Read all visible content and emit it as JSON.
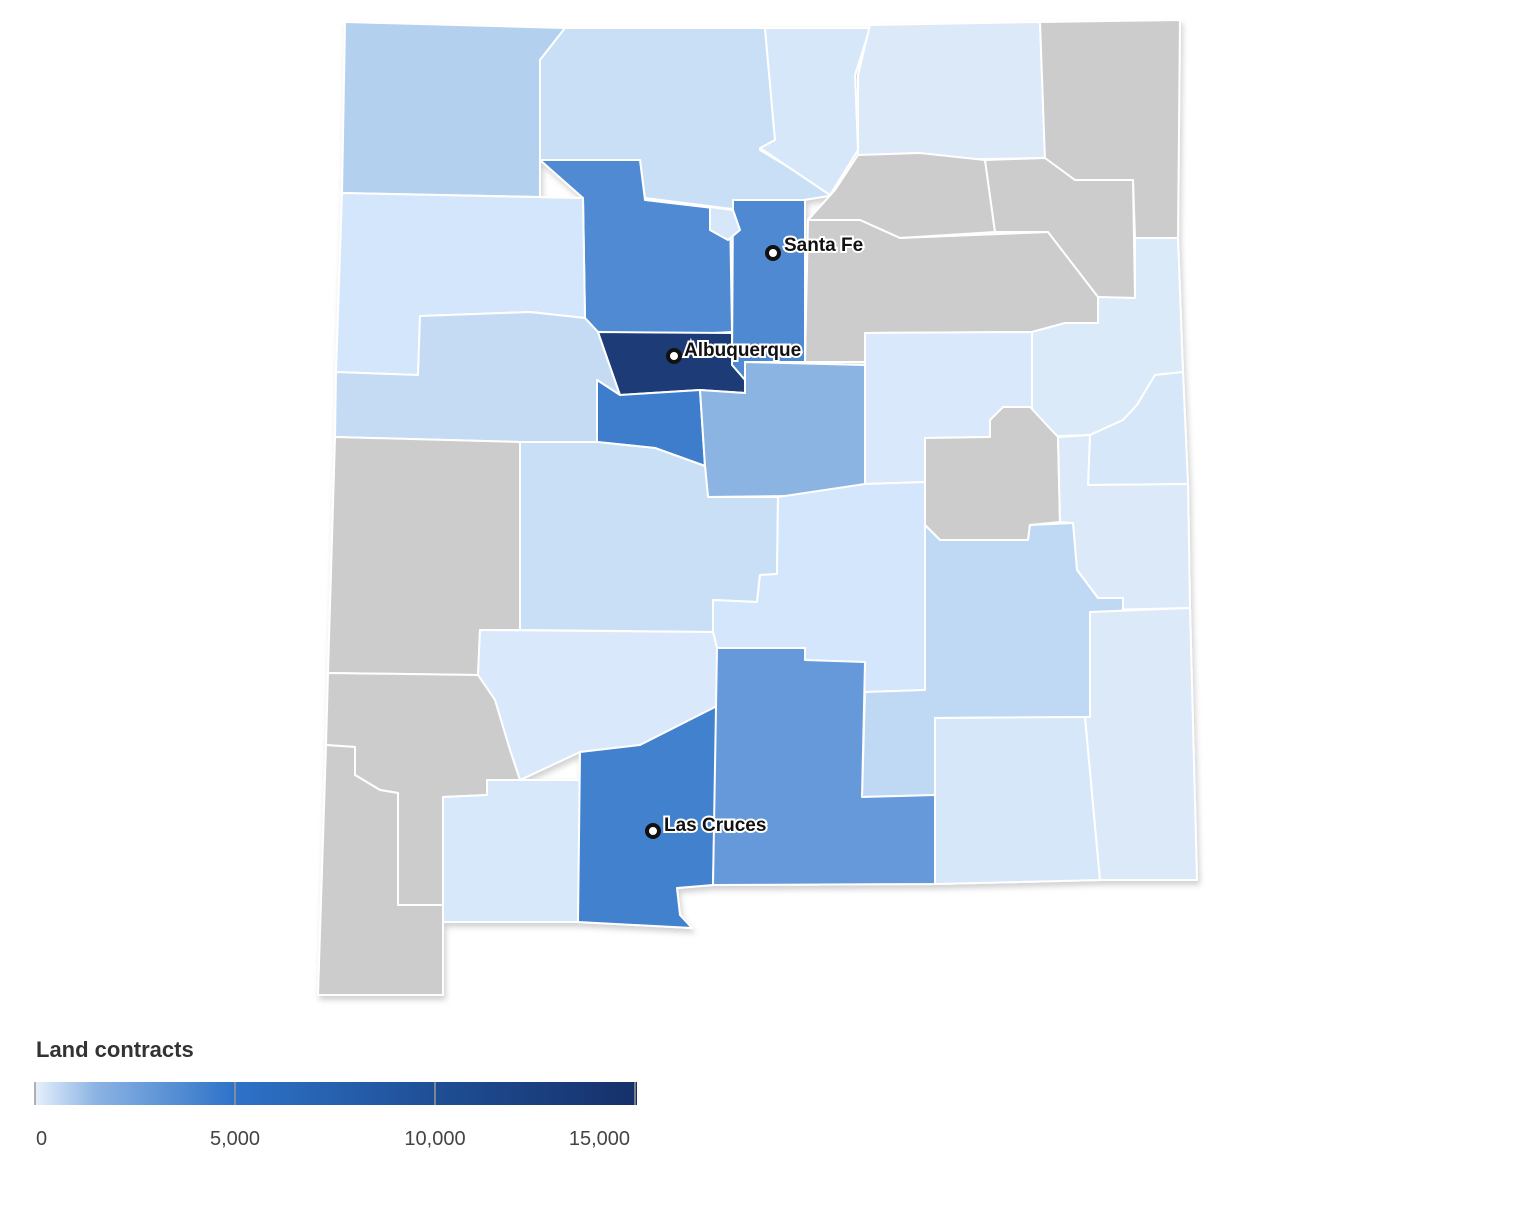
{
  "cities": [
    "Santa Fe",
    "Albuquerque",
    "Las Cruces"
  ],
  "legend": {
    "title": "Land contracts",
    "range": [
      0,
      15050
    ],
    "ticks": [
      0,
      {
        "value": 5000,
        "label": "5,000"
      },
      {
        "value": 10000,
        "label": "10,000"
      },
      {
        "value": 15000,
        "label": "15,000"
      }
    ]
  }
}
